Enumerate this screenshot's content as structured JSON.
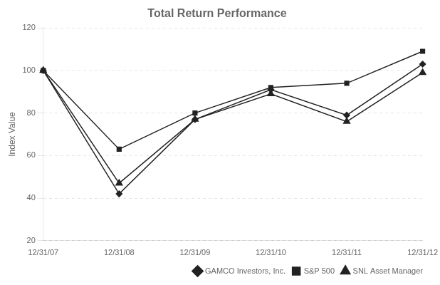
{
  "chart_data": {
    "type": "line",
    "title": "Total Return Performance",
    "ylabel": "Index Value",
    "categories": [
      "12/31/07",
      "12/31/08",
      "12/31/09",
      "12/31/10",
      "12/31/11",
      "12/31/12"
    ],
    "series": [
      {
        "name": "GAMCO Investors, Inc.",
        "color": "#222222",
        "marker": "diamond",
        "values": [
          100,
          42,
          77,
          91,
          79,
          103
        ]
      },
      {
        "name": "S&P 500",
        "color": "#222222",
        "marker": "square",
        "values": [
          100,
          63,
          80,
          92,
          94,
          109
        ]
      },
      {
        "name": "SNL Asset Manager",
        "color": "#222222",
        "marker": "triangle",
        "values": [
          100,
          47,
          77,
          89,
          76,
          99
        ]
      }
    ],
    "ylim": [
      20,
      120
    ],
    "yticks": [
      20,
      40,
      60,
      80,
      100,
      120
    ],
    "grid": "y",
    "legend": "lower right"
  }
}
